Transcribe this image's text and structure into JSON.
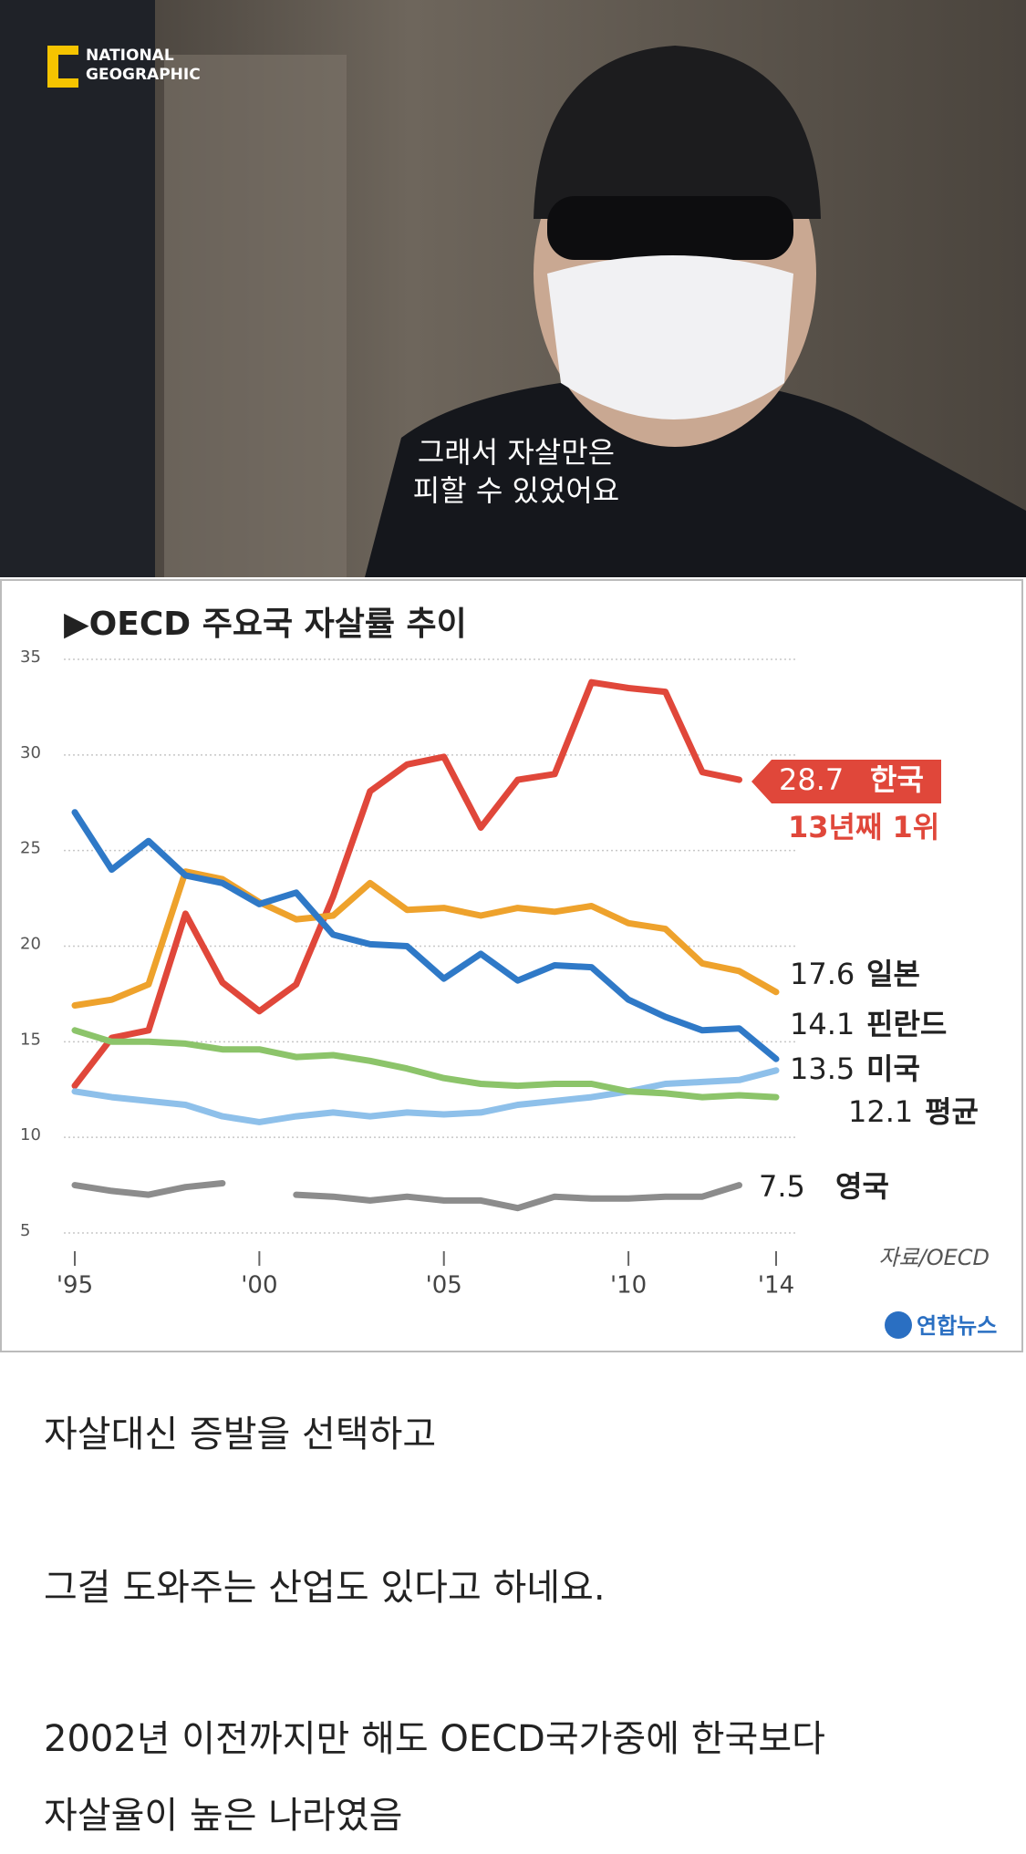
{
  "video": {
    "logo": [
      "NATIONAL",
      "GEOGRAPHIC"
    ],
    "subtitle": [
      "그래서 자살만은",
      "피할 수 있었어요"
    ]
  },
  "chart_data": {
    "type": "line",
    "title": "▶OECD 주요국 자살률 추이",
    "x": [
      1995,
      1996,
      1997,
      1998,
      1999,
      2000,
      2001,
      2002,
      2003,
      2004,
      2005,
      2006,
      2007,
      2008,
      2009,
      2010,
      2011,
      2012,
      2013,
      2014
    ],
    "xlim": [
      1995,
      2014
    ],
    "xticks": [
      {
        "value": 1995,
        "label": "'95"
      },
      {
        "value": 2000,
        "label": "'00"
      },
      {
        "value": 2005,
        "label": "'05"
      },
      {
        "value": 2010,
        "label": "'10"
      },
      {
        "value": 2014,
        "label": "'14"
      }
    ],
    "ylim": [
      5,
      35
    ],
    "yticks": [
      5,
      10,
      15,
      20,
      25,
      30,
      35
    ],
    "grid": true,
    "series": [
      {
        "name": "한국",
        "color": "#e0473a",
        "values": [
          12.7,
          15.2,
          15.6,
          21.7,
          18.1,
          16.6,
          18.0,
          22.6,
          28.1,
          29.5,
          29.9,
          26.2,
          28.7,
          29.0,
          33.8,
          33.5,
          33.3,
          29.1,
          28.7,
          null
        ]
      },
      {
        "name": "일본",
        "color": "#eea22c",
        "values": [
          16.9,
          17.2,
          18.0,
          23.9,
          23.5,
          22.3,
          21.4,
          21.6,
          23.3,
          21.9,
          22.0,
          21.6,
          22.0,
          21.8,
          22.1,
          21.2,
          20.9,
          19.1,
          18.7,
          17.6
        ]
      },
      {
        "name": "핀란드",
        "color": "#2f79c7",
        "values": [
          27.0,
          24.0,
          25.5,
          23.7,
          23.3,
          22.2,
          22.8,
          20.6,
          20.1,
          20.0,
          18.3,
          19.6,
          18.2,
          19.0,
          18.9,
          17.2,
          16.3,
          15.6,
          15.7,
          14.1
        ]
      },
      {
        "name": "미국",
        "color": "#8ec0ea",
        "values": [
          12.4,
          12.1,
          11.9,
          11.7,
          11.1,
          10.8,
          11.1,
          11.3,
          11.1,
          11.3,
          11.2,
          11.3,
          11.7,
          11.9,
          12.1,
          12.4,
          12.8,
          12.9,
          13.0,
          13.5
        ]
      },
      {
        "name": "평균",
        "color": "#8cc46a",
        "values": [
          15.6,
          15.0,
          15.0,
          14.9,
          14.6,
          14.6,
          14.2,
          14.3,
          14.0,
          13.6,
          13.1,
          12.8,
          12.7,
          12.8,
          12.8,
          12.4,
          12.3,
          12.1,
          12.2,
          12.1
        ]
      },
      {
        "name": "영국",
        "color": "#8c8c8c",
        "values": [
          7.5,
          7.2,
          7.0,
          7.4,
          7.6,
          null,
          7.0,
          6.9,
          6.7,
          6.9,
          6.7,
          6.7,
          6.3,
          6.9,
          6.8,
          6.8,
          6.9,
          6.9,
          7.5,
          null
        ]
      }
    ],
    "annotation": "13년째 1위",
    "source": "자료/OECD",
    "logo": "연합뉴스"
  },
  "post": {
    "lines": [
      "자살대신 증발을 선택하고",
      "그걸 도와주는 산업도 있다고 하네요.",
      "2002년 이전까지만 해도 OECD국가중에 한국보다",
      "자살율이 높은 나라였음"
    ]
  }
}
